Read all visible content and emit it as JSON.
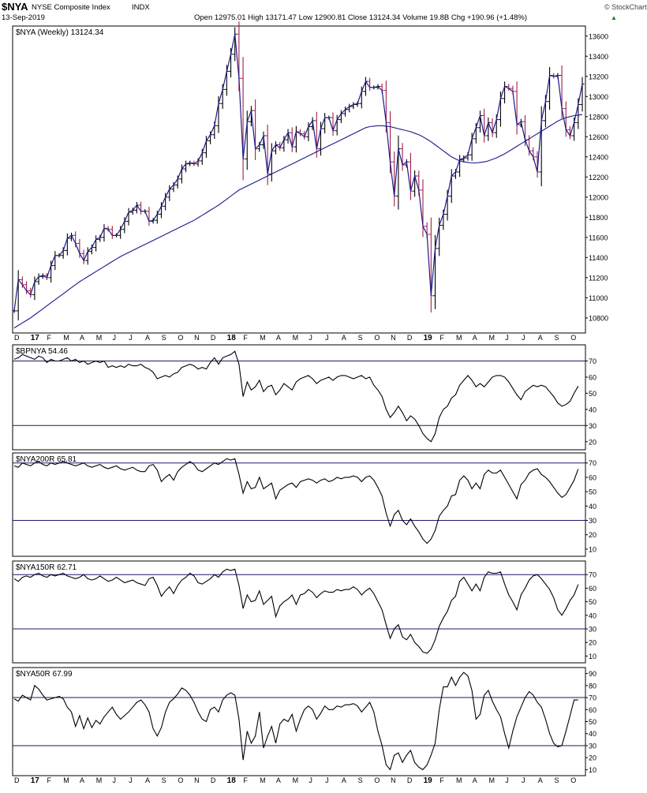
{
  "header": {
    "symbol": "$NYA",
    "name": "NYSE Composite Index",
    "exchange": "INDX",
    "date": "13-Sep-2019",
    "copyright": "© StockCharts.com",
    "quote_line": "Open 12975.01  High 13171.47  Low 12900.81  Close 13124.34  Volume 19.8B  Chg +190.96 (+1.48%)",
    "chg_arrow": "▲"
  },
  "colors": {
    "price": "#1a1a8c",
    "ma": "#1a1a8c",
    "up_bar": "#000000",
    "down_bar": "#a0204a",
    "ref_line": "#1a1a6e",
    "indicator": "#000000"
  },
  "chart_data": [
    {
      "type": "line",
      "panel": "price",
      "label": "$NYA (Weekly) 13124.34",
      "x_ticks": [
        "D",
        "17",
        "F",
        "M",
        "A",
        "M",
        "J",
        "J",
        "A",
        "S",
        "O",
        "N",
        "D",
        "18",
        "F",
        "M",
        "A",
        "M",
        "J",
        "J",
        "A",
        "S",
        "O",
        "N",
        "D",
        "19",
        "F",
        "M",
        "A",
        "M",
        "J",
        "J",
        "A",
        "S",
        "O"
      ],
      "bold_ticks": [
        "17",
        "18",
        "19"
      ],
      "ylim": [
        10650,
        13700
      ],
      "y_ticks": [
        10800,
        11000,
        11200,
        11400,
        11600,
        11800,
        12000,
        12200,
        12400,
        12600,
        12800,
        13000,
        13200,
        13400,
        13600
      ],
      "series": [
        {
          "values": [
            10870,
            11180,
            11130,
            11070,
            11030,
            11160,
            11210,
            11220,
            11200,
            11320,
            11420,
            11420,
            11470,
            11590,
            11620,
            11540,
            11440,
            11370,
            11460,
            11500,
            11580,
            11600,
            11690,
            11680,
            11620,
            11620,
            11680,
            11760,
            11850,
            11870,
            11920,
            11860,
            11860,
            11760,
            11770,
            11830,
            11910,
            12000,
            12080,
            12120,
            12180,
            12280,
            12330,
            12340,
            12330,
            12360,
            12440,
            12560,
            12620,
            12710,
            12930,
            13070,
            13250,
            13420,
            13620,
            13180,
            12380,
            12750,
            12860,
            12480,
            12520,
            12610,
            12230,
            12460,
            12520,
            12490,
            12570,
            12640,
            12500,
            12650,
            12630,
            12600,
            12700,
            12760,
            12480,
            12680,
            12790,
            12790,
            12660,
            12770,
            12830,
            12870,
            12900,
            12920,
            12930,
            13050,
            13150,
            13090,
            13090,
            13100,
            13060,
            12740,
            12350,
            12010,
            12480,
            12320,
            12350,
            12060,
            12210,
            12070,
            11710,
            11630,
            11020,
            11490,
            11720,
            11830,
            12010,
            12210,
            12250,
            12370,
            12390,
            12420,
            12580,
            12690,
            12810,
            12610,
            12740,
            12640,
            12770,
            12980,
            13100,
            13080,
            13050,
            12720,
            12750,
            12570,
            12460,
            12400,
            12250,
            12760,
            12950,
            13210,
            13200,
            13210,
            12880,
            12670,
            12610,
            12740,
            12920,
            13124
          ]
        },
        {
          "values": [
            10700,
            10725,
            10750,
            10775,
            10800,
            10830,
            10860,
            10890,
            10920,
            10950,
            10980,
            11010,
            11040,
            11070,
            11100,
            11130,
            11160,
            11185,
            11210,
            11235,
            11260,
            11285,
            11310,
            11335,
            11360,
            11385,
            11410,
            11430,
            11450,
            11470,
            11490,
            11510,
            11530,
            11550,
            11570,
            11590,
            11610,
            11630,
            11650,
            11670,
            11690,
            11710,
            11730,
            11750,
            11770,
            11795,
            11820,
            11845,
            11870,
            11895,
            11920,
            11950,
            11980,
            12010,
            12040,
            12070,
            12090,
            12110,
            12130,
            12150,
            12170,
            12190,
            12210,
            12230,
            12250,
            12270,
            12290,
            12310,
            12330,
            12350,
            12370,
            12390,
            12410,
            12430,
            12450,
            12470,
            12490,
            12510,
            12530,
            12550,
            12570,
            12590,
            12610,
            12630,
            12650,
            12670,
            12690,
            12700,
            12705,
            12710,
            12710,
            12705,
            12700,
            12690,
            12680,
            12670,
            12660,
            12650,
            12635,
            12620,
            12600,
            12575,
            12550,
            12520,
            12490,
            12460,
            12430,
            12400,
            12380,
            12360,
            12350,
            12345,
            12340,
            12340,
            12345,
            12350,
            12360,
            12375,
            12390,
            12410,
            12430,
            12455,
            12480,
            12505,
            12530,
            12555,
            12580,
            12605,
            12630,
            12655,
            12680,
            12705,
            12730,
            12755,
            12775,
            12790,
            12800,
            12810,
            12815,
            12820
          ]
        }
      ]
    },
    {
      "type": "line",
      "panel": "indicator",
      "label": "$BPNYA 54.46",
      "ylim": [
        15,
        80
      ],
      "y_ticks": [
        20,
        30,
        40,
        50,
        60,
        70
      ],
      "ref_lines": [
        70,
        30
      ],
      "values": [
        71,
        72,
        74,
        73,
        72,
        71,
        73,
        72,
        69,
        71,
        70,
        70,
        71,
        72,
        70,
        71,
        69,
        70,
        68,
        69,
        70,
        69,
        70,
        66,
        67,
        66,
        67,
        66,
        68,
        67,
        67,
        68,
        66,
        65,
        63,
        59,
        60,
        61,
        60,
        62,
        63,
        66,
        67,
        68,
        67,
        65,
        66,
        65,
        69,
        72,
        68,
        72,
        73,
        74,
        76,
        68,
        48,
        57,
        52,
        54,
        58,
        51,
        54,
        55,
        49,
        52,
        56,
        54,
        52,
        57,
        59,
        60,
        61,
        59,
        56,
        58,
        59,
        60,
        58,
        60,
        61,
        61,
        60,
        59,
        60,
        61,
        59,
        60,
        55,
        52,
        48,
        40,
        35,
        38,
        42,
        38,
        33,
        36,
        34,
        30,
        25,
        22,
        20,
        25,
        35,
        40,
        42,
        47,
        49,
        55,
        58,
        61,
        58,
        54,
        56,
        54,
        57,
        60,
        61,
        61,
        60,
        57,
        53,
        49,
        46,
        51,
        53,
        55,
        54,
        55,
        54,
        51,
        48,
        44,
        42,
        43,
        45,
        50,
        54.46
      ]
    },
    {
      "type": "line",
      "panel": "indicator",
      "label": "$NYA200R 65.81",
      "ylim": [
        5,
        77
      ],
      "y_ticks": [
        10,
        20,
        30,
        40,
        50,
        60,
        70
      ],
      "ref_lines": [
        70,
        30
      ],
      "values": [
        68,
        67,
        70,
        69,
        68,
        70,
        71,
        69,
        68,
        70,
        69,
        70,
        71,
        70,
        69,
        68,
        69,
        70,
        68,
        67,
        68,
        69,
        67,
        66,
        67,
        68,
        66,
        65,
        66,
        67,
        65,
        64,
        64,
        68,
        69,
        65,
        57,
        60,
        62,
        58,
        64,
        67,
        69,
        71,
        69,
        65,
        64,
        66,
        68,
        70,
        69,
        71,
        73,
        72,
        73,
        62,
        49,
        57,
        52,
        53,
        60,
        52,
        54,
        56,
        45,
        51,
        53,
        55,
        56,
        53,
        57,
        58,
        59,
        58,
        56,
        58,
        59,
        57,
        58,
        60,
        59,
        60,
        60,
        61,
        60,
        57,
        60,
        61,
        58,
        53,
        47,
        35,
        26,
        34,
        37,
        30,
        27,
        31,
        26,
        22,
        17,
        14,
        17,
        23,
        33,
        37,
        40,
        47,
        48,
        58,
        61,
        58,
        52,
        56,
        52,
        62,
        65,
        63,
        63,
        65,
        60,
        55,
        50,
        45,
        55,
        58,
        63,
        65,
        66,
        62,
        60,
        57,
        53,
        49,
        46,
        48,
        53,
        58,
        65.81
      ]
    },
    {
      "type": "line",
      "panel": "indicator",
      "label": "$NYA150R 62.71",
      "ylim": [
        5,
        80
      ],
      "y_ticks": [
        10,
        20,
        30,
        40,
        50,
        60,
        70
      ],
      "ref_lines": [
        70,
        30
      ],
      "values": [
        67,
        65,
        68,
        69,
        68,
        70,
        71,
        69,
        68,
        70,
        69,
        70,
        71,
        69,
        68,
        67,
        68,
        70,
        67,
        66,
        67,
        69,
        67,
        65,
        66,
        68,
        66,
        64,
        65,
        66,
        64,
        63,
        62,
        67,
        68,
        62,
        54,
        58,
        61,
        56,
        62,
        66,
        68,
        71,
        69,
        64,
        63,
        65,
        67,
        70,
        68,
        72,
        74,
        73,
        74,
        62,
        45,
        55,
        50,
        51,
        58,
        48,
        51,
        54,
        39,
        47,
        50,
        52,
        55,
        48,
        55,
        56,
        59,
        57,
        53,
        56,
        58,
        57,
        57,
        59,
        58,
        59,
        59,
        61,
        59,
        55,
        58,
        60,
        56,
        50,
        44,
        33,
        23,
        30,
        33,
        24,
        22,
        26,
        20,
        17,
        13,
        12,
        15,
        22,
        32,
        38,
        43,
        51,
        54,
        65,
        68,
        63,
        58,
        63,
        58,
        68,
        72,
        71,
        71,
        72,
        63,
        55,
        50,
        44,
        55,
        60,
        66,
        69,
        70,
        67,
        63,
        59,
        53,
        44,
        40,
        45,
        51,
        55,
        62.71
      ]
    },
    {
      "type": "line",
      "panel": "indicator",
      "label": "$NYA50R 67.99",
      "x_ticks": [
        "D",
        "17",
        "F",
        "M",
        "A",
        "M",
        "J",
        "J",
        "A",
        "S",
        "O",
        "N",
        "D",
        "18",
        "F",
        "M",
        "A",
        "M",
        "J",
        "J",
        "A",
        "S",
        "O",
        "N",
        "D",
        "19",
        "F",
        "M",
        "A",
        "M",
        "J",
        "J",
        "A",
        "S",
        "O"
      ],
      "bold_ticks": [
        "17",
        "18",
        "19"
      ],
      "ylim": [
        5,
        95
      ],
      "y_ticks": [
        10,
        20,
        30,
        40,
        50,
        60,
        70,
        80,
        90
      ],
      "ref_lines": [
        70,
        30
      ],
      "values": [
        69,
        67,
        72,
        70,
        68,
        80,
        77,
        72,
        68,
        69,
        70,
        71,
        69,
        62,
        58,
        46,
        55,
        44,
        53,
        45,
        51,
        48,
        54,
        58,
        62,
        56,
        52,
        55,
        58,
        62,
        66,
        68,
        64,
        58,
        44,
        38,
        45,
        58,
        66,
        69,
        73,
        78,
        76,
        72,
        66,
        58,
        52,
        50,
        60,
        62,
        58,
        68,
        72,
        74,
        72,
        52,
        18,
        42,
        32,
        38,
        58,
        28,
        38,
        46,
        32,
        48,
        52,
        50,
        56,
        42,
        52,
        60,
        63,
        60,
        52,
        57,
        63,
        60,
        60,
        63,
        62,
        64,
        64,
        65,
        63,
        58,
        62,
        66,
        58,
        42,
        30,
        14,
        10,
        22,
        24,
        16,
        22,
        26,
        16,
        12,
        10,
        14,
        22,
        32,
        60,
        79,
        79,
        87,
        80,
        87,
        91,
        88,
        76,
        52,
        56,
        72,
        76,
        67,
        60,
        54,
        40,
        28,
        42,
        54,
        62,
        70,
        75,
        72,
        66,
        62,
        52,
        40,
        32,
        29,
        30,
        42,
        55,
        68,
        67.99
      ]
    }
  ]
}
